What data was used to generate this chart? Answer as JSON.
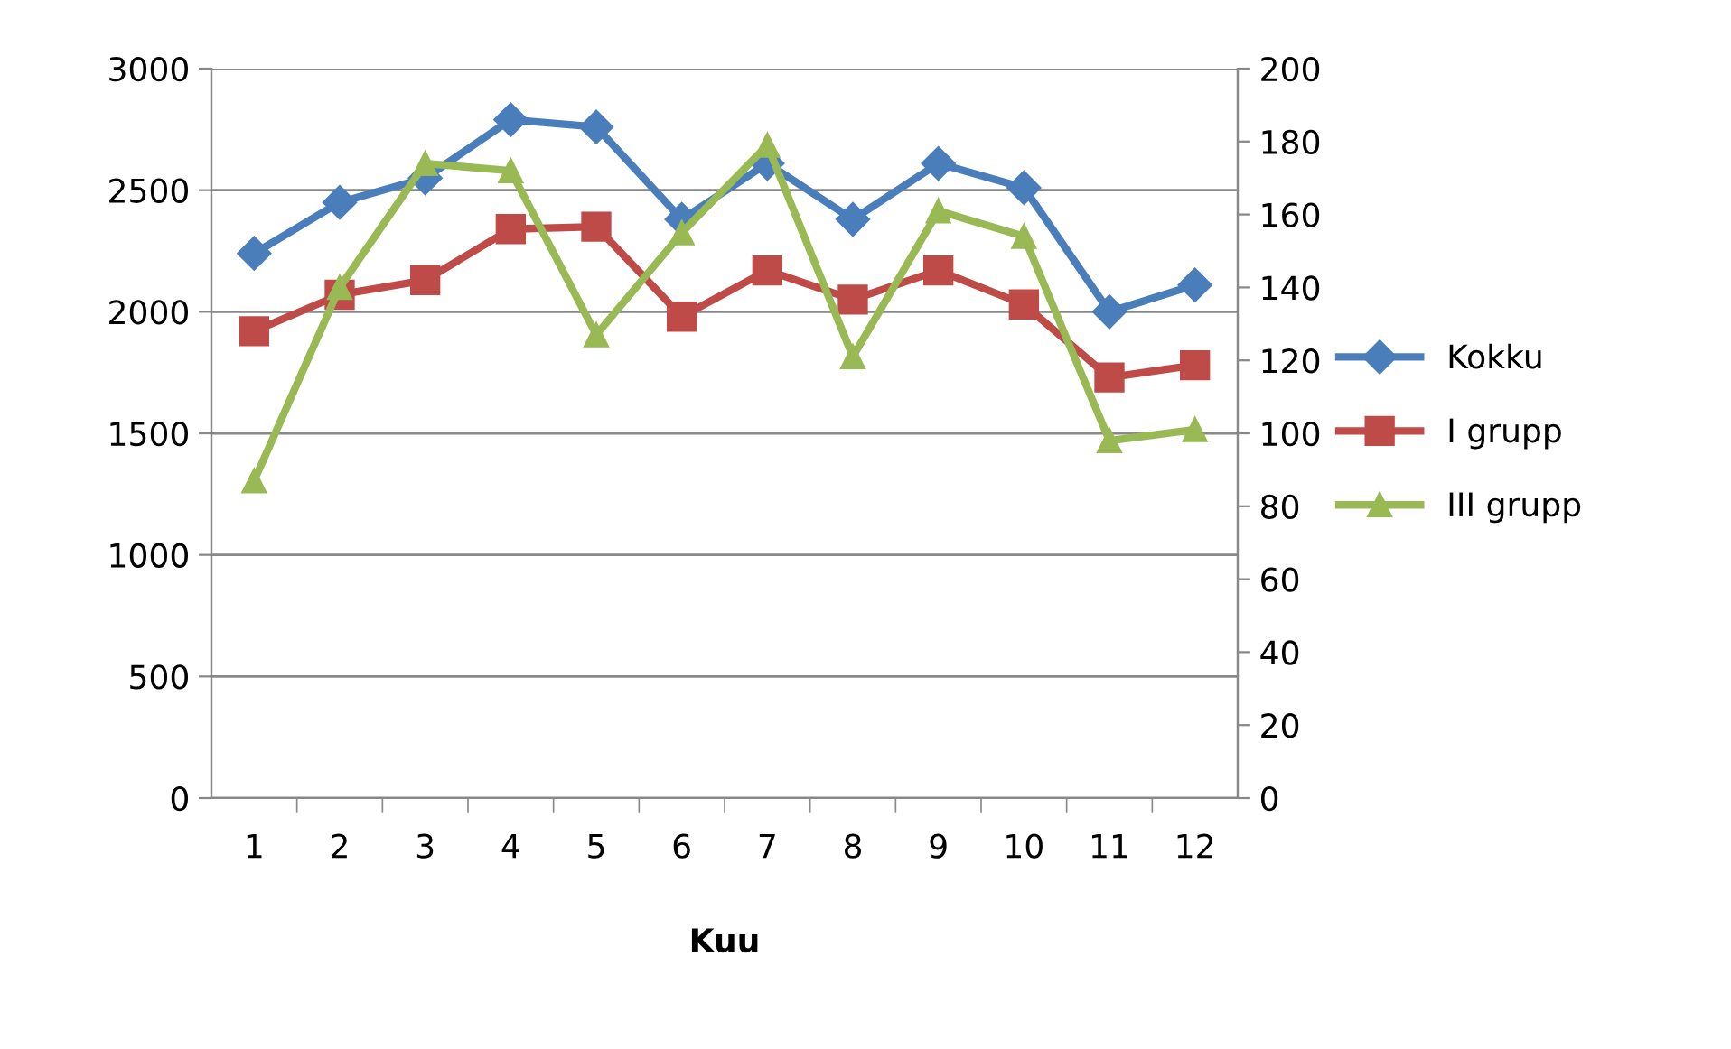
{
  "chart_data": {
    "type": "line",
    "xlabel": "Kuu",
    "categories": [
      "1",
      "2",
      "3",
      "4",
      "5",
      "6",
      "7",
      "8",
      "9",
      "10",
      "11",
      "12"
    ],
    "series": [
      {
        "name": "Kokku",
        "color": "#4a7ebb",
        "marker": "diamond",
        "values": [
          2240,
          2450,
          2550,
          2790,
          2760,
          2380,
          2610,
          2380,
          2610,
          2510,
          2000,
          2110
        ]
      },
      {
        "name": "I grupp",
        "color": "#be4b48",
        "marker": "square",
        "values": [
          1920,
          2070,
          2130,
          2340,
          2350,
          1980,
          2170,
          2050,
          2170,
          2030,
          1730,
          1780
        ]
      },
      {
        "name": "III grupp",
        "color": "#98b954",
        "marker": "triangle",
        "axis": "y2",
        "values": [
          87,
          140,
          174,
          172,
          127,
          155,
          179,
          121,
          161,
          154,
          98,
          101
        ]
      }
    ],
    "ylim": [
      0,
      3000
    ],
    "yticks": [
      0,
      500,
      1000,
      1500,
      2000,
      2500,
      3000
    ],
    "y2lim": [
      0,
      200
    ],
    "y2ticks": [
      0,
      20,
      40,
      60,
      80,
      100,
      120,
      140,
      160,
      180,
      200
    ],
    "grid": "y",
    "legend": "right"
  }
}
